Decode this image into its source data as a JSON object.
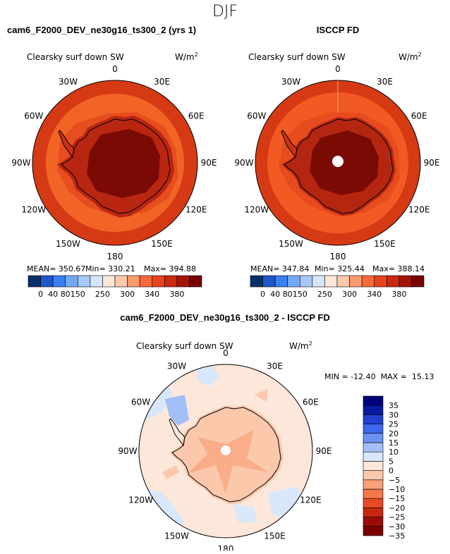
{
  "season": "DJF",
  "colors": {
    "abs_scale": [
      "#08306b",
      "#1d57c9",
      "#3a80f0",
      "#74a8f5",
      "#a8c8f7",
      "#d6e6f9",
      "#fde8d8",
      "#fcc9ab",
      "#fb9a6c",
      "#f66a3a",
      "#e8431f",
      "#c82a10",
      "#a01508",
      "#780000"
    ],
    "diff_scale": [
      "#00007a",
      "#0a1aa0",
      "#1f40d0",
      "#3d66ee",
      "#6a92f3",
      "#a2bff8",
      "#d8e8fa",
      "#fde7da",
      "#fbc8ac",
      "#f9a17a",
      "#f3764c",
      "#e84a24",
      "#c72710",
      "#9a0b06",
      "#7a0000"
    ],
    "land_outline": "#000000",
    "border": "#000000"
  },
  "panel1": {
    "title": "cam6_F2000_DEV_ne30g16_ts300_2 (yrs 1)",
    "variable": "Clearsky surf down SW",
    "units": "W/m",
    "units_exp": "2",
    "stats": {
      "mean": "MEAN= 350.67",
      "min": "Min= 330.21",
      "max": "Max= 394.88"
    }
  },
  "panel2": {
    "title": "ISCCP FD",
    "variable": "Clearsky surf down SW",
    "units": "W/m",
    "units_exp": "2",
    "stats": {
      "mean": "MEAN= 347.84",
      "min": "Min= 325.44",
      "max": "Max= 388.14"
    }
  },
  "panel3": {
    "title": "cam6_F2000_DEV_ne30g16_ts300_2 - ISCCP FD",
    "variable": "Clearsky surf down SW",
    "units": "W/m",
    "units_exp": "2",
    "minmax": "MIN = -12.40  MAX =  15.13"
  },
  "lon_labels": [
    "0",
    "30E",
    "60E",
    "90E",
    "120E",
    "150E",
    "180",
    "150W",
    "120W",
    "90W",
    "60W",
    "30W"
  ],
  "abs_ticks": [
    "0",
    "40",
    "80",
    "150",
    "250",
    "300",
    "340",
    "380"
  ],
  "diff_ticks": [
    "35",
    "30",
    "25",
    "20",
    "15",
    "10",
    "5",
    "0",
    "−5",
    "−10",
    "−15",
    "−20",
    "−25",
    "−30",
    "−35"
  ]
}
